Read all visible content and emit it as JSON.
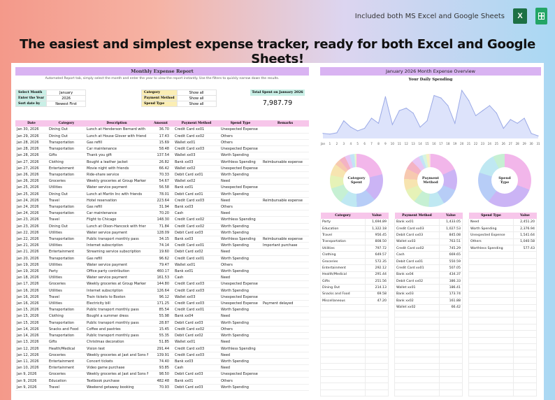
{
  "top_note": "Included both MS Excel and Google Sheets",
  "excel_icon_letter": "X",
  "headline": "The easiest and simplest expense tracker, ready for both Excel and Google Sheets!",
  "report": {
    "title": "Monthly Expense Report",
    "subtitle": "Automated Report tab, simply select the month and enter the year to view the report instantly. Use the filters to quickly narrow down the results.",
    "filters": [
      {
        "label": "Select Month",
        "value": "January"
      },
      {
        "label": "Enter the Year",
        "value": "2026"
      },
      {
        "label": "Sort date by",
        "value": "Newest First"
      }
    ],
    "filters2": [
      {
        "label": "Category",
        "value": "Show all"
      },
      {
        "label": "Payment Method",
        "value": "Show all"
      },
      {
        "label": "Spend Type",
        "value": "Show all"
      }
    ],
    "total_label": "Total Spent on January 2026",
    "total_value": "7,987.79",
    "columns": [
      "Date",
      "Category",
      "Description",
      "Amount",
      "Payment Method",
      "Spend Type",
      "Remarks"
    ],
    "rows": [
      [
        "Jan 30, 2026",
        "Dining Out",
        "Lunch at Henderson Bernard with",
        "36.70",
        "Credit Card xx01",
        "Unexpected Expense",
        ""
      ],
      [
        "Jan 29, 2026",
        "Dining Out",
        "Lunch at House Glover with friend",
        "17.43",
        "Credit Card xx02",
        "Others",
        ""
      ],
      [
        "Jan 28, 2026",
        "Transportation",
        "Gas refill",
        "15.69",
        "Wallet xx01",
        "Others",
        ""
      ],
      [
        "Jan 28, 2026",
        "Transportation",
        "Car maintenance",
        "58.48",
        "Credit Card xx03",
        "Unexpected Expense",
        ""
      ],
      [
        "Jan 28, 2026",
        "Gifts",
        "Thank you gift",
        "137.54",
        "Wallet xx03",
        "Worth Spending",
        ""
      ],
      [
        "Jan 27, 2026",
        "Clothing",
        "Bought a leather jacket",
        "26.82",
        "Bank xx03",
        "Worthless Spending",
        "Reimbursable expense"
      ],
      [
        "Jan 27, 2026",
        "Entertainment",
        "Movie night with friends",
        "66.42",
        "Wallet xx02",
        "Unexpected Expense",
        ""
      ],
      [
        "Jan 26, 2026",
        "Transportation",
        "Ride-share service",
        "70.33",
        "Debit Card xx01",
        "Worth Spending",
        ""
      ],
      [
        "Jan 26, 2026",
        "Groceries",
        "Weekly groceries at Group Marker",
        "54.67",
        "Wallet xx02",
        "Need",
        ""
      ],
      [
        "Jan 25, 2026",
        "Utilities",
        "Water service payment",
        "56.58",
        "Bank xx01",
        "Unexpected Expense",
        ""
      ],
      [
        "Jan 25, 2026",
        "Dining Out",
        "Lunch at Martin Inc with friends",
        "78.01",
        "Debit Card xx01",
        "Worth Spending",
        ""
      ],
      [
        "Jan 24, 2026",
        "Travel",
        "Hotel reservation",
        "223.64",
        "Credit Card xx03",
        "Need",
        "Reimbursable expense"
      ],
      [
        "Jan 24, 2026",
        "Transportation",
        "Gas refill",
        "31.94",
        "Bank xx03",
        "Others",
        ""
      ],
      [
        "Jan 24, 2026",
        "Transportation",
        "Car maintenance",
        "70.20",
        "Cash",
        "Need",
        ""
      ],
      [
        "Jan 23, 2026",
        "Travel",
        "Flight to Chicago",
        "148.30",
        "Credit Card xx02",
        "Worthless Spending",
        ""
      ],
      [
        "Jan 23, 2026",
        "Dining Out",
        "Lunch at Olson-Hancock with frier",
        "71.84",
        "Credit Card xx02",
        "Worth Spending",
        ""
      ],
      [
        "Jan 22, 2026",
        "Utilities",
        "Water service payment",
        "128.09",
        "Debit Card xx03",
        "Worth Spending",
        ""
      ],
      [
        "Jan 22, 2026",
        "Transportation",
        "Public transport monthly pass",
        "34.15",
        "Bank xx03",
        "Worthless Spending",
        "Reimbursable expense"
      ],
      [
        "Jan 21, 2026",
        "Utilities",
        "Internet subscription",
        "74.14",
        "Credit Card xx01",
        "Worth Spending",
        "Important purchase"
      ],
      [
        "Jan 21, 2026",
        "Entertainment",
        "Streaming service subscription",
        "19.60",
        "Debit Card xx02",
        "Need",
        ""
      ],
      [
        "Jan 20, 2026",
        "Transportation",
        "Gas refill",
        "96.62",
        "Credit Card xx01",
        "Worth Spending",
        ""
      ],
      [
        "Jan 19, 2026",
        "Utilities",
        "Water service payment",
        "79.47",
        "Wallet xx01",
        "Others",
        ""
      ],
      [
        "Jan 19, 2026",
        "Party",
        "Office party contribution",
        "460.17",
        "Bank xx01",
        "Worth Spending",
        ""
      ],
      [
        "Jan 18, 2026",
        "Utilities",
        "Water service payment",
        "161.53",
        "Cash",
        "Need",
        ""
      ],
      [
        "Jan 17, 2026",
        "Groceries",
        "Weekly groceries at Group Marker",
        "144.80",
        "Credit Card xx03",
        "Unexpected Expense",
        ""
      ],
      [
        "Jan 16, 2026",
        "Utilities",
        "Internet subscription",
        "126.64",
        "Credit Card xx03",
        "Worth Spending",
        ""
      ],
      [
        "Jan 16, 2026",
        "Travel",
        "Train tickets to Boston",
        "96.12",
        "Wallet xx03",
        "Unexpected Expense",
        ""
      ],
      [
        "Jan 16, 2026",
        "Utilities",
        "Electricity bill",
        "171.25",
        "Credit Card xx03",
        "Unexpected Expense",
        "Payment delayed"
      ],
      [
        "Jan 15, 2026",
        "Transportation",
        "Public transport monthly pass",
        "85.54",
        "Credit Card xx01",
        "Worth Spending",
        ""
      ],
      [
        "Jan 15, 2026",
        "Clothing",
        "Bought a summer dress",
        "55.98",
        "Bank xx04",
        "Need",
        ""
      ],
      [
        "Jan 15, 2026",
        "Transportation",
        "Public transport monthly pass",
        "28.87",
        "Debit Card xx03",
        "Worth Spending",
        ""
      ],
      [
        "Jan 14, 2026",
        "Snacks and Food",
        "Coffee and pastries",
        "15.45",
        "Credit Card xx02",
        "Others",
        ""
      ],
      [
        "Jan 14, 2026",
        "Transportation",
        "Public transport monthly pass",
        "55.35",
        "Debit Card xx02",
        "Worth Spending",
        ""
      ],
      [
        "Jan 13, 2026",
        "Gifts",
        "Christmas decoration",
        "51.85",
        "Wallet xx01",
        "Need",
        ""
      ],
      [
        "Jan 12, 2026",
        "Health/Medical",
        "Vision test",
        "291.44",
        "Credit Card xx03",
        "Worthless Spending",
        ""
      ],
      [
        "Jan 12, 2026",
        "Groceries",
        "Weekly groceries at Jast and Sons Mar",
        "139.91",
        "Credit Card xx03",
        "Need",
        ""
      ],
      [
        "Jan 11, 2026",
        "Entertainment",
        "Concert tickets",
        "74.40",
        "Bank xx03",
        "Worth Spending",
        ""
      ],
      [
        "Jan 10, 2026",
        "Entertainment",
        "Video game purchase",
        "93.85",
        "Cash",
        "Need",
        ""
      ],
      [
        "Jan 9, 2026",
        "Groceries",
        "Weekly groceries at Jast and Sons Mar",
        "98.50",
        "Debit Card xx03",
        "Unexpected Expense",
        ""
      ],
      [
        "Jan 9, 2026",
        "Education",
        "Textbook purchase",
        "482.48",
        "Bank xx01",
        "Others",
        ""
      ],
      [
        "Jan 9, 2026",
        "Travel",
        "Weekend getaway booking",
        "70.93",
        "Debit Card xx03",
        "Worth Spending",
        ""
      ]
    ]
  },
  "overview": {
    "title": "January 2026 Month Expense Overview",
    "daily_title": "Your Daily Spending",
    "line_color": "#9aa9e6",
    "donuts": [
      {
        "label_l1": "Category",
        "label_l2": "Spent"
      },
      {
        "label_l1": "Payment",
        "label_l2": "Method"
      },
      {
        "label_l1": "Spend",
        "label_l2": "Type"
      }
    ],
    "tables": [
      {
        "headers": [
          "Category",
          "Value"
        ],
        "rows": [
          [
            "Party",
            "1,694.89"
          ],
          [
            "Education",
            "1,322.18"
          ],
          [
            "Travel",
            "956.45"
          ],
          [
            "Transportation",
            "808.50"
          ],
          [
            "Utilities",
            "797.72"
          ],
          [
            "Clothing",
            "649.57"
          ],
          [
            "Groceries",
            "572.35"
          ],
          [
            "Entertainment",
            "292.12"
          ],
          [
            "Health/Medical",
            "291.44"
          ],
          [
            "Gifts",
            "251.56"
          ],
          [
            "Dining Out",
            "214.13"
          ],
          [
            "Snacks and Food",
            "69.58"
          ],
          [
            "Miscellaneous",
            "47.20"
          ]
        ]
      },
      {
        "headers": [
          "Payment Method",
          "Value"
        ],
        "rows": [
          [
            "Bank xx01",
            "1,433.05"
          ],
          [
            "Credit Card xx03",
            "1,027.53"
          ],
          [
            "Debit Card xx03",
            "845.08"
          ],
          [
            "Wallet xx03",
            "763.51"
          ],
          [
            "Credit Card xx02",
            "745.29"
          ],
          [
            "Cash",
            "669.65"
          ],
          [
            "Debit Card xx01",
            "550.59"
          ],
          [
            "Credit Card xx01",
            "507.05"
          ],
          [
            "Bank xx04",
            "434.37"
          ],
          [
            "Debit Card xx02",
            "386.33"
          ],
          [
            "Wallet xx01",
            "186.41"
          ],
          [
            "Bank xx03",
            "173.74"
          ],
          [
            "Bank xx02",
            "161.88"
          ],
          [
            "Wallet xx02",
            "66.42"
          ]
        ]
      },
      {
        "headers": [
          "Spend Type",
          "Value"
        ],
        "rows": [
          [
            "Need",
            "2,451.20"
          ],
          [
            "Worth Spending",
            "2,376.94"
          ],
          [
            "Unexpected Expense",
            "1,541.64"
          ],
          [
            "Others",
            "1,040.58"
          ],
          [
            "Worthless Spending",
            "577.43"
          ]
        ]
      }
    ]
  },
  "chart_data": [
    {
      "type": "area",
      "title": "Your Daily Spending",
      "x": [
        "Jan",
        "1",
        "2",
        "3",
        "4",
        "5",
        "6",
        "7",
        "8",
        "9",
        "10",
        "11",
        "12",
        "13",
        "14",
        "15",
        "16",
        "17",
        "18",
        "19",
        "20",
        "21",
        "22",
        "23",
        "24",
        "25",
        "26",
        "27",
        "28",
        "29",
        "30",
        "31"
      ],
      "values": [
        40,
        35,
        45,
        140,
        90,
        60,
        80,
        160,
        120,
        330,
        110,
        220,
        240,
        200,
        90,
        140,
        340,
        320,
        260,
        120,
        380,
        300,
        180,
        220,
        260,
        200,
        80,
        150,
        120,
        160,
        40,
        20
      ],
      "ylim": [
        0,
        420
      ]
    },
    {
      "type": "pie",
      "title": "Category Spent",
      "categories": [
        "Party",
        "Education",
        "Travel",
        "Transportation",
        "Utilities",
        "Clothing",
        "Groceries",
        "Entertainment",
        "Health/Medical",
        "Gifts",
        "Dining Out",
        "Snacks and Food",
        "Miscellaneous"
      ],
      "values": [
        1694.89,
        1322.18,
        956.45,
        808.5,
        797.72,
        649.57,
        572.35,
        292.12,
        291.44,
        251.56,
        214.13,
        69.58,
        47.2
      ]
    },
    {
      "type": "pie",
      "title": "Payment Method",
      "categories": [
        "Bank xx01",
        "Credit Card xx03",
        "Debit Card xx03",
        "Wallet xx03",
        "Credit Card xx02",
        "Cash",
        "Debit Card xx01",
        "Credit Card xx01",
        "Bank xx04",
        "Debit Card xx02",
        "Wallet xx01",
        "Bank xx03",
        "Bank xx02",
        "Wallet xx02"
      ],
      "values": [
        1433.05,
        1027.53,
        845.08,
        763.51,
        745.29,
        669.65,
        550.59,
        507.05,
        434.37,
        386.33,
        186.41,
        173.74,
        161.88,
        66.42
      ]
    },
    {
      "type": "pie",
      "title": "Spend Type",
      "categories": [
        "Need",
        "Worth Spending",
        "Unexpected Expense",
        "Others",
        "Worthless Spending"
      ],
      "values": [
        2451.2,
        2376.94,
        1541.64,
        1040.58,
        577.43
      ]
    }
  ],
  "palette": [
    "#f2b6ea",
    "#cbb4f5",
    "#b7cdf7",
    "#bfe8f2",
    "#c6f0d3",
    "#e6f2b7",
    "#f7e4b0",
    "#f7c9b0",
    "#f4b3c4",
    "#e8c7f5",
    "#c4e3f7",
    "#d6f5e0",
    "#f5f0c4",
    "#f9d8e6"
  ]
}
